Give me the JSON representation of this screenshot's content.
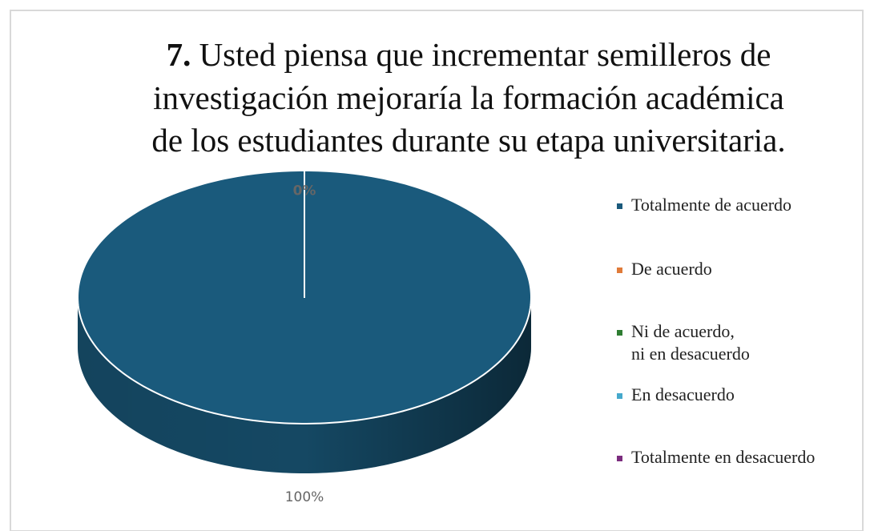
{
  "chart_data": {
    "type": "pie",
    "title_number": "7.",
    "title_lines": [
      "Usted piensa que incrementar semilleros de",
      "investigación mejoraría la formación académica",
      "de los estudiantes durante su etapa universitaria."
    ],
    "categories": [
      "Totalmente de acuerdo",
      "De acuerdo",
      "Ni de acuerdo, ni en desacuerdo",
      "En desacuerdo",
      "Totalmente en desacuerdo"
    ],
    "values": [
      100,
      0,
      0,
      0,
      0
    ],
    "value_labels": [
      "100%",
      "0%",
      null,
      null,
      null
    ],
    "colors": [
      "#1a5a7c",
      "#e07b39",
      "#2e7d32",
      "#45a9cc",
      "#7b2c7e"
    ],
    "legend": "right"
  }
}
